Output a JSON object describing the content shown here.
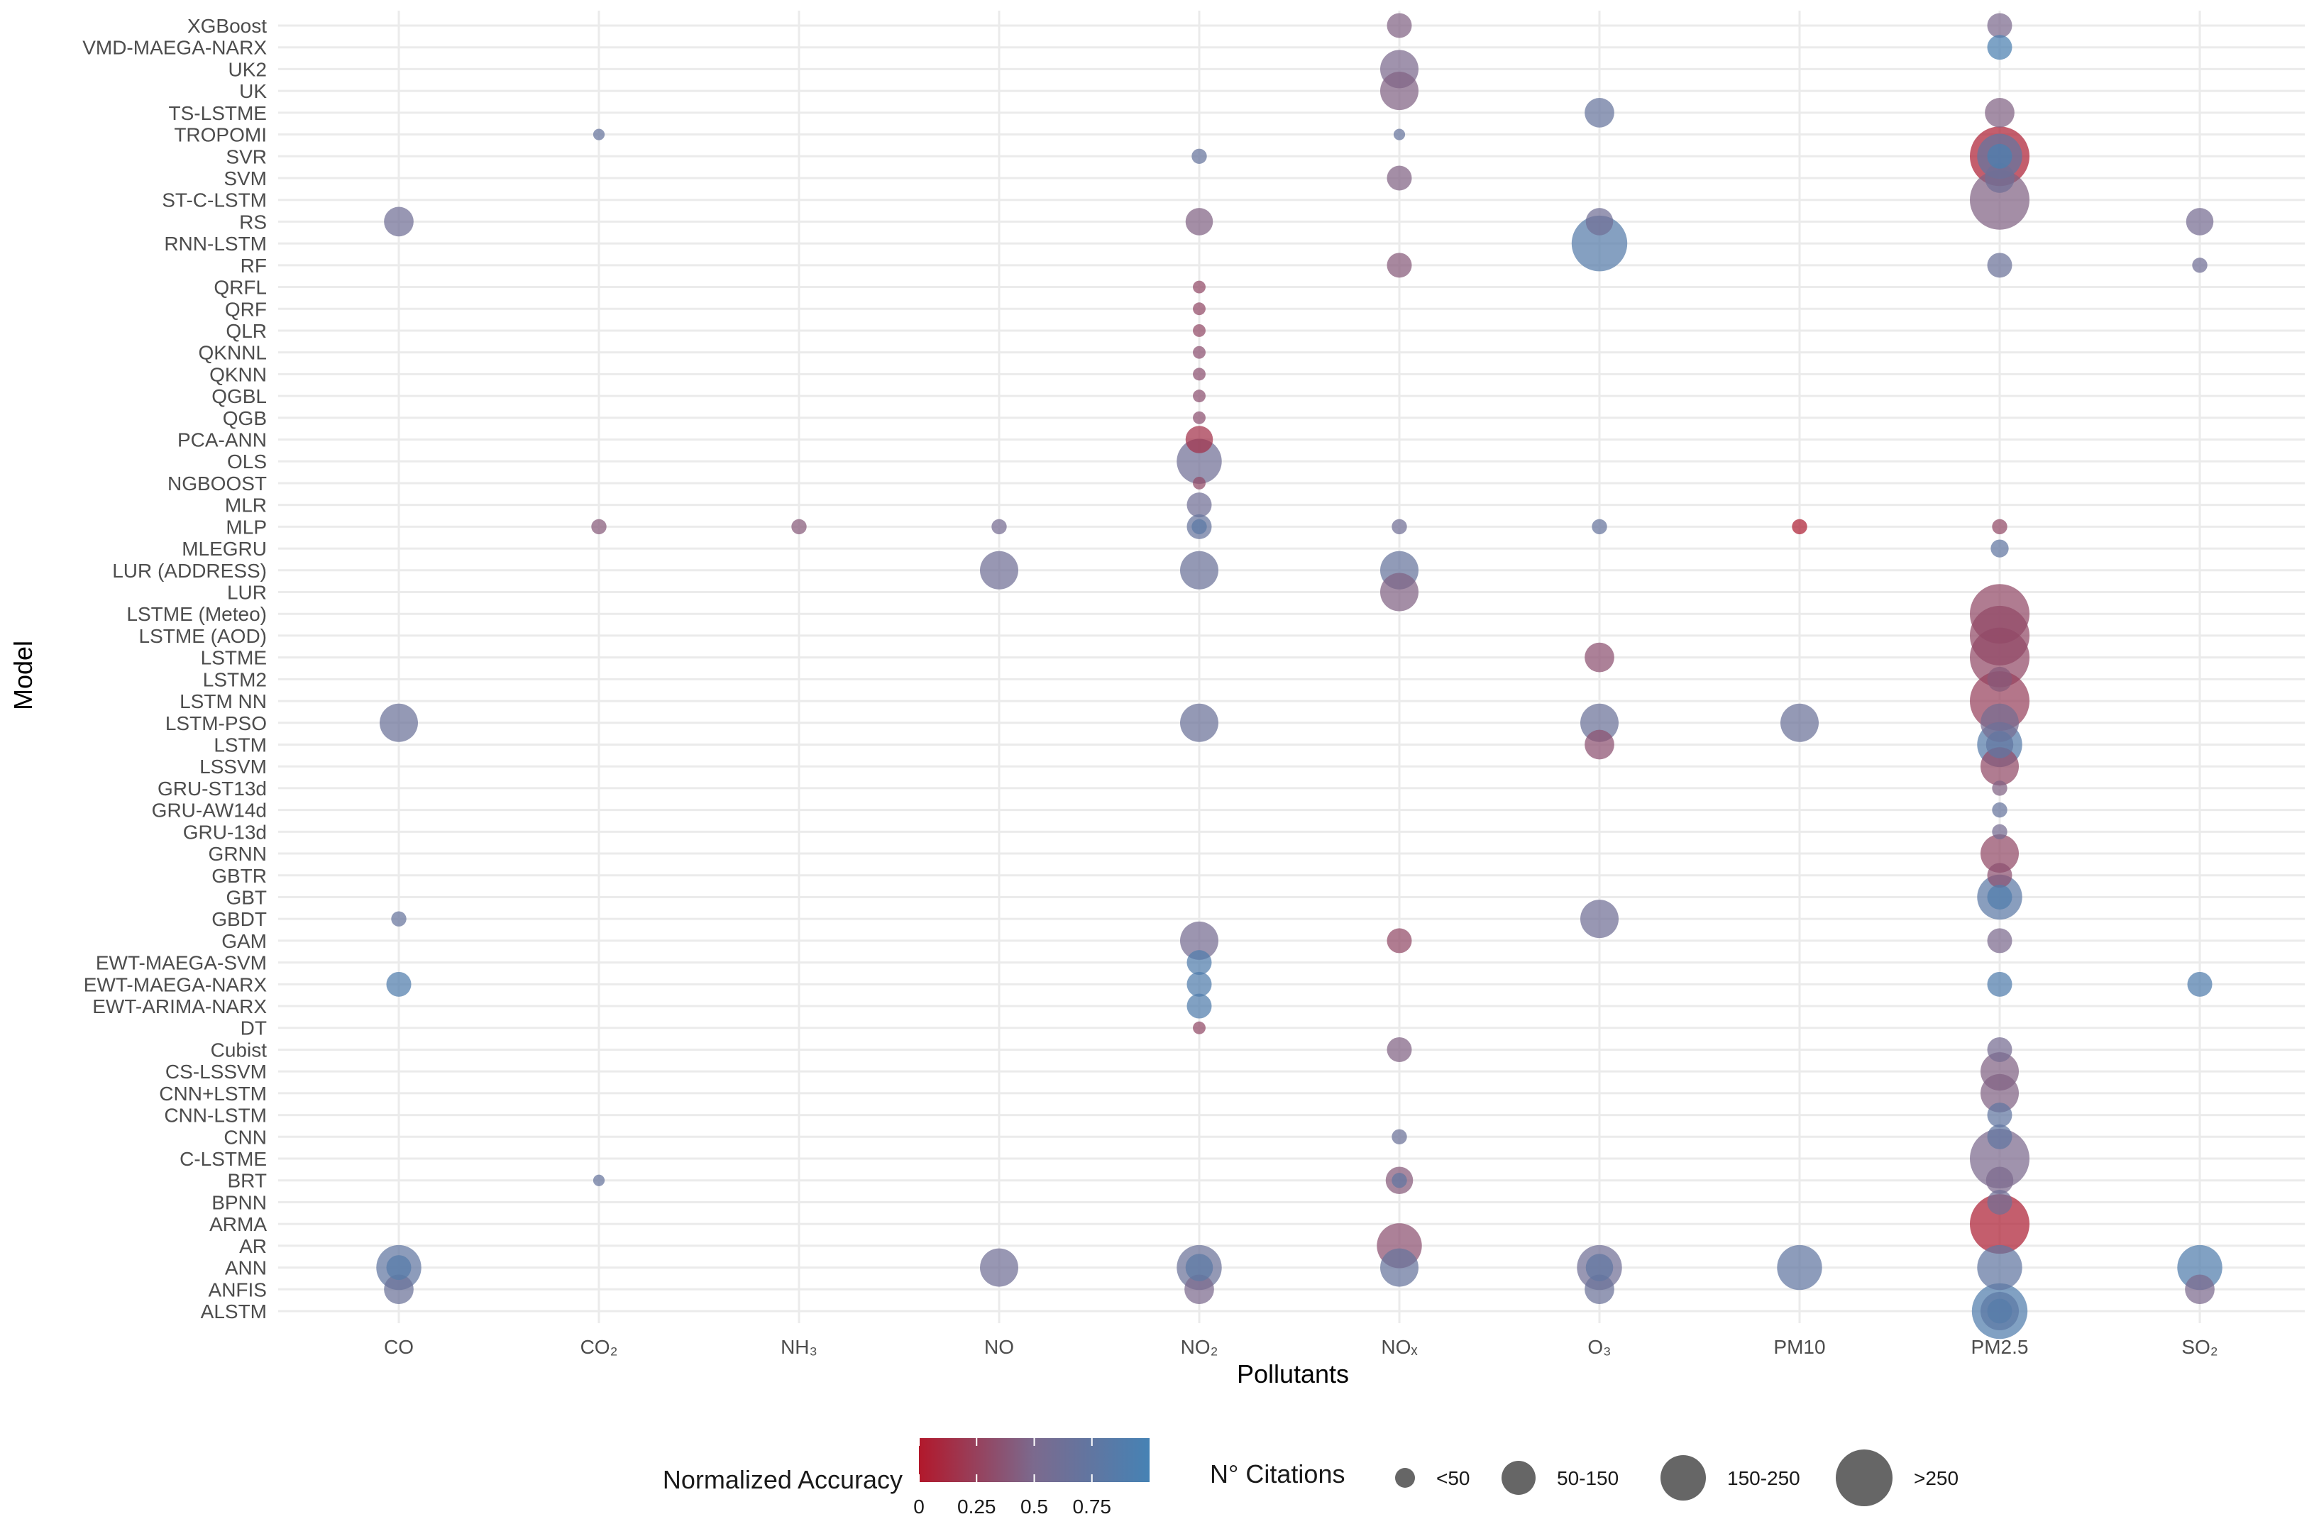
{
  "chart_data": {
    "type": "scatter",
    "subtype": "bubble",
    "xlabel": "Pollutants",
    "ylabel": "Model",
    "x_categories": [
      "CO",
      "CO₂",
      "NH₃",
      "NO",
      "NO₂",
      "NOₓ",
      "O₃",
      "PM10",
      "PM2.5",
      "SO₂"
    ],
    "y_categories": [
      "ALSTM",
      "ANFIS",
      "ANN",
      "AR",
      "ARMA",
      "BPNN",
      "BRT",
      "C-LSTME",
      "CNN",
      "CNN-LSTM",
      "CNN+LSTM",
      "CS-LSSVM",
      "Cubist",
      "DT",
      "EWT-ARIMA-NARX",
      "EWT-MAEGA-NARX",
      "EWT-MAEGA-SVM",
      "GAM",
      "GBDT",
      "GBT",
      "GBTR",
      "GRNN",
      "GRU-13d",
      "GRU-AW14d",
      "GRU-ST13d",
      "LSSVM",
      "LSTM",
      "LSTM-PSO",
      "LSTM NN",
      "LSTM2",
      "LSTME",
      "LSTME (AOD)",
      "LSTME (Meteo)",
      "LUR",
      "LUR (ADDRESS)",
      "MLEGRU",
      "MLP",
      "MLR",
      "NGBOOST",
      "OLS",
      "PCA-ANN",
      "QGB",
      "QGBL",
      "QKNN",
      "QKNNL",
      "QLR",
      "QRF",
      "QRFL",
      "RF",
      "RNN-LSTM",
      "RS",
      "ST-C-LSTM",
      "SVM",
      "SVR",
      "TROPOMI",
      "TS-LSTME",
      "UK",
      "UK2",
      "VMD-MAEGA-NARX",
      "XGBoost"
    ],
    "color_legend": {
      "title": "Normalized Accuracy",
      "ticks": [
        0,
        0.25,
        0.5,
        0.75
      ],
      "low_color": "#b2182b",
      "mid_color": "#7b6a8e",
      "high_color": "#4682b4"
    },
    "size_legend": {
      "title": "N° Citations",
      "labels": [
        "<50",
        "50-150",
        "150-250",
        ">250"
      ],
      "symbol_color": "#666666"
    },
    "points": [
      {
        "model": "XGBoost",
        "pollutant": "NOₓ",
        "citations": 30,
        "accuracy": 0.45
      },
      {
        "model": "XGBoost",
        "pollutant": "PM2.5",
        "citations": 30,
        "accuracy": 0.5
      },
      {
        "model": "VMD-MAEGA-NARX",
        "pollutant": "PM2.5",
        "citations": 30,
        "accuracy": 0.95
      },
      {
        "model": "UK2",
        "pollutant": "NOₓ",
        "citations": 100,
        "accuracy": 0.5
      },
      {
        "model": "UK",
        "pollutant": "NOₓ",
        "citations": 100,
        "accuracy": 0.45
      },
      {
        "model": "TS-LSTME",
        "pollutant": "O₃",
        "citations": 50,
        "accuracy": 0.7
      },
      {
        "model": "TS-LSTME",
        "pollutant": "PM2.5",
        "citations": 50,
        "accuracy": 0.45
      },
      {
        "model": "TROPOMI",
        "pollutant": "CO₂",
        "citations": 1,
        "accuracy": 0.7
      },
      {
        "model": "TROPOMI",
        "pollutant": "NOₓ",
        "citations": 1,
        "accuracy": 0.7
      },
      {
        "model": "SVR",
        "pollutant": "NO₂",
        "citations": 5,
        "accuracy": 0.7
      },
      {
        "model": "SVR",
        "pollutant": "PM2.5",
        "citations": 350,
        "accuracy": 0.05
      },
      {
        "model": "SVR",
        "pollutant": "PM2.5",
        "citations": 150,
        "accuracy": 0.75
      },
      {
        "model": "SVR",
        "pollutant": "PM2.5",
        "citations": 30,
        "accuracy": 0.95
      },
      {
        "model": "SVM",
        "pollutant": "NOₓ",
        "citations": 30,
        "accuracy": 0.45
      },
      {
        "model": "SVM",
        "pollutant": "PM2.5",
        "citations": 50,
        "accuracy": 0.6
      },
      {
        "model": "ST-C-LSTM",
        "pollutant": "PM2.5",
        "citations": 300,
        "accuracy": 0.45
      },
      {
        "model": "RS",
        "pollutant": "CO",
        "citations": 50,
        "accuracy": 0.6
      },
      {
        "model": "RS",
        "pollutant": "NO₂",
        "citations": 40,
        "accuracy": 0.45
      },
      {
        "model": "RS",
        "pollutant": "O₃",
        "citations": 40,
        "accuracy": 0.6
      },
      {
        "model": "RS",
        "pollutant": "SO₂",
        "citations": 40,
        "accuracy": 0.55
      },
      {
        "model": "RNN-LSTM",
        "pollutant": "O₃",
        "citations": 250,
        "accuracy": 0.85
      },
      {
        "model": "RF",
        "pollutant": "NOₓ",
        "citations": 30,
        "accuracy": 0.4
      },
      {
        "model": "RF",
        "pollutant": "PM2.5",
        "citations": 30,
        "accuracy": 0.65
      },
      {
        "model": "RF",
        "pollutant": "SO₂",
        "citations": 5,
        "accuracy": 0.6
      },
      {
        "model": "QRFL",
        "pollutant": "NO₂",
        "citations": 2,
        "accuracy": 0.3
      },
      {
        "model": "QRF",
        "pollutant": "NO₂",
        "citations": 2,
        "accuracy": 0.3
      },
      {
        "model": "QLR",
        "pollutant": "NO₂",
        "citations": 2,
        "accuracy": 0.3
      },
      {
        "model": "QKNNL",
        "pollutant": "NO₂",
        "citations": 2,
        "accuracy": 0.35
      },
      {
        "model": "QKNN",
        "pollutant": "NO₂",
        "citations": 2,
        "accuracy": 0.35
      },
      {
        "model": "QGBL",
        "pollutant": "NO₂",
        "citations": 2,
        "accuracy": 0.35
      },
      {
        "model": "QGB",
        "pollutant": "NO₂",
        "citations": 2,
        "accuracy": 0.35
      },
      {
        "model": "PCA-ANN",
        "pollutant": "NO₂",
        "citations": 40,
        "accuracy": 0.15
      },
      {
        "model": "OLS",
        "pollutant": "NO₂",
        "citations": 150,
        "accuracy": 0.6
      },
      {
        "model": "NGBOOST",
        "pollutant": "NO₂",
        "citations": 2,
        "accuracy": 0.3
      },
      {
        "model": "MLR",
        "pollutant": "NO₂",
        "citations": 30,
        "accuracy": 0.6
      },
      {
        "model": "MLP",
        "pollutant": "CO₂",
        "citations": 5,
        "accuracy": 0.4
      },
      {
        "model": "MLP",
        "pollutant": "NH₃",
        "citations": 5,
        "accuracy": 0.4
      },
      {
        "model": "MLP",
        "pollutant": "NO",
        "citations": 5,
        "accuracy": 0.55
      },
      {
        "model": "MLP",
        "pollutant": "NO₂",
        "citations": 30,
        "accuracy": 0.7
      },
      {
        "model": "MLP",
        "pollutant": "NO₂",
        "citations": 5,
        "accuracy": 0.8
      },
      {
        "model": "MLP",
        "pollutant": "NOₓ",
        "citations": 5,
        "accuracy": 0.6
      },
      {
        "model": "MLP",
        "pollutant": "O₃",
        "citations": 5,
        "accuracy": 0.7
      },
      {
        "model": "MLP",
        "pollutant": "PM10",
        "citations": 5,
        "accuracy": 0.05
      },
      {
        "model": "MLP",
        "pollutant": "PM2.5",
        "citations": 5,
        "accuracy": 0.3
      },
      {
        "model": "MLEGRU",
        "pollutant": "PM2.5",
        "citations": 10,
        "accuracy": 0.75
      },
      {
        "model": "LUR (ADDRESS)",
        "pollutant": "NO",
        "citations": 100,
        "accuracy": 0.6
      },
      {
        "model": "LUR (ADDRESS)",
        "pollutant": "NO₂",
        "citations": 100,
        "accuracy": 0.65
      },
      {
        "model": "LUR (ADDRESS)",
        "pollutant": "NOₓ",
        "citations": 100,
        "accuracy": 0.7
      },
      {
        "model": "LUR",
        "pollutant": "NOₓ",
        "citations": 100,
        "accuracy": 0.45
      },
      {
        "model": "LSTME (Meteo)",
        "pollutant": "PM2.5",
        "citations": 350,
        "accuracy": 0.3
      },
      {
        "model": "LSTME (AOD)",
        "pollutant": "PM2.5",
        "citations": 350,
        "accuracy": 0.3
      },
      {
        "model": "LSTME",
        "pollutant": "O₃",
        "citations": 50,
        "accuracy": 0.35
      },
      {
        "model": "LSTME",
        "pollutant": "PM2.5",
        "citations": 350,
        "accuracy": 0.3
      },
      {
        "model": "LSTM2",
        "pollutant": "PM2.5",
        "citations": 30,
        "accuracy": 0.4
      },
      {
        "model": "LSTM NN",
        "pollutant": "PM2.5",
        "citations": 350,
        "accuracy": 0.25
      },
      {
        "model": "LSTM-PSO",
        "pollutant": "CO",
        "citations": 100,
        "accuracy": 0.65
      },
      {
        "model": "LSTM-PSO",
        "pollutant": "NO₂",
        "citations": 100,
        "accuracy": 0.65
      },
      {
        "model": "LSTM-PSO",
        "pollutant": "O₃",
        "citations": 100,
        "accuracy": 0.65
      },
      {
        "model": "LSTM-PSO",
        "pollutant": "PM10",
        "citations": 100,
        "accuracy": 0.65
      },
      {
        "model": "LSTM-PSO",
        "pollutant": "PM2.5",
        "citations": 100,
        "accuracy": 0.55
      },
      {
        "model": "LSTM",
        "pollutant": "O₃",
        "citations": 50,
        "accuracy": 0.35
      },
      {
        "model": "LSTM",
        "pollutant": "PM2.5",
        "citations": 150,
        "accuracy": 0.85
      },
      {
        "model": "LSTM",
        "pollutant": "PM2.5",
        "citations": 40,
        "accuracy": 0.75
      },
      {
        "model": "LSSVM",
        "pollutant": "PM2.5",
        "citations": 100,
        "accuracy": 0.3
      },
      {
        "model": "GRU-ST13d",
        "pollutant": "PM2.5",
        "citations": 5,
        "accuracy": 0.45
      },
      {
        "model": "GRU-AW14d",
        "pollutant": "PM2.5",
        "citations": 5,
        "accuracy": 0.7
      },
      {
        "model": "GRU-13d",
        "pollutant": "PM2.5",
        "citations": 5,
        "accuracy": 0.55
      },
      {
        "model": "GRNN",
        "pollutant": "PM2.5",
        "citations": 100,
        "accuracy": 0.3
      },
      {
        "model": "GBTR",
        "pollutant": "PM2.5",
        "citations": 30,
        "accuracy": 0.35
      },
      {
        "model": "GBT",
        "pollutant": "PM2.5",
        "citations": 150,
        "accuracy": 0.8
      },
      {
        "model": "GBT",
        "pollutant": "PM2.5",
        "citations": 30,
        "accuracy": 0.9
      },
      {
        "model": "GBDT",
        "pollutant": "CO",
        "citations": 5,
        "accuracy": 0.7
      },
      {
        "model": "GBDT",
        "pollutant": "O₃",
        "citations": 100,
        "accuracy": 0.6
      },
      {
        "model": "GAM",
        "pollutant": "NO₂",
        "citations": 100,
        "accuracy": 0.55
      },
      {
        "model": "GAM",
        "pollutant": "NOₓ",
        "citations": 30,
        "accuracy": 0.3
      },
      {
        "model": "GAM",
        "pollutant": "PM2.5",
        "citations": 30,
        "accuracy": 0.5
      },
      {
        "model": "EWT-MAEGA-SVM",
        "pollutant": "NO₂",
        "citations": 30,
        "accuracy": 0.9
      },
      {
        "model": "EWT-MAEGA-NARX",
        "pollutant": "CO",
        "citations": 30,
        "accuracy": 0.9
      },
      {
        "model": "EWT-MAEGA-NARX",
        "pollutant": "NO₂",
        "citations": 30,
        "accuracy": 0.9
      },
      {
        "model": "EWT-MAEGA-NARX",
        "pollutant": "PM2.5",
        "citations": 30,
        "accuracy": 0.9
      },
      {
        "model": "EWT-MAEGA-NARX",
        "pollutant": "SO₂",
        "citations": 30,
        "accuracy": 0.9
      },
      {
        "model": "EWT-ARIMA-NARX",
        "pollutant": "NO₂",
        "citations": 30,
        "accuracy": 0.9
      },
      {
        "model": "DT",
        "pollutant": "NO₂",
        "citations": 2,
        "accuracy": 0.3
      },
      {
        "model": "Cubist",
        "pollutant": "NOₓ",
        "citations": 30,
        "accuracy": 0.45
      },
      {
        "model": "Cubist",
        "pollutant": "PM2.5",
        "citations": 30,
        "accuracy": 0.55
      },
      {
        "model": "CS-LSSVM",
        "pollutant": "PM2.5",
        "citations": 100,
        "accuracy": 0.45
      },
      {
        "model": "CNN+LSTM",
        "pollutant": "PM2.5",
        "citations": 100,
        "accuracy": 0.45
      },
      {
        "model": "CNN-LSTM",
        "pollutant": "PM2.5",
        "citations": 30,
        "accuracy": 0.75
      },
      {
        "model": "CNN",
        "pollutant": "NOₓ",
        "citations": 5,
        "accuracy": 0.65
      },
      {
        "model": "CNN",
        "pollutant": "PM2.5",
        "citations": 30,
        "accuracy": 0.75
      },
      {
        "model": "C-LSTME",
        "pollutant": "PM2.5",
        "citations": 300,
        "accuracy": 0.5
      },
      {
        "model": "BRT",
        "pollutant": "CO₂",
        "citations": 1,
        "accuracy": 0.7
      },
      {
        "model": "BRT",
        "pollutant": "NOₓ",
        "citations": 40,
        "accuracy": 0.4
      },
      {
        "model": "BRT",
        "pollutant": "NOₓ",
        "citations": 5,
        "accuracy": 0.75
      },
      {
        "model": "BRT",
        "pollutant": "PM2.5",
        "citations": 40,
        "accuracy": 0.5
      },
      {
        "model": "BPNN",
        "pollutant": "PM2.5",
        "citations": 30,
        "accuracy": 0.6
      },
      {
        "model": "ARMA",
        "pollutant": "PM2.5",
        "citations": 300,
        "accuracy": 0.05
      },
      {
        "model": "AR",
        "pollutant": "NOₓ",
        "citations": 150,
        "accuracy": 0.35
      },
      {
        "model": "ANN",
        "pollutant": "CO",
        "citations": 150,
        "accuracy": 0.75
      },
      {
        "model": "ANN",
        "pollutant": "CO",
        "citations": 30,
        "accuracy": 0.85
      },
      {
        "model": "ANN",
        "pollutant": "NO",
        "citations": 100,
        "accuracy": 0.6
      },
      {
        "model": "ANN",
        "pollutant": "NO₂",
        "citations": 150,
        "accuracy": 0.65
      },
      {
        "model": "ANN",
        "pollutant": "NO₂",
        "citations": 40,
        "accuracy": 0.8
      },
      {
        "model": "ANN",
        "pollutant": "NOₓ",
        "citations": 100,
        "accuracy": 0.7
      },
      {
        "model": "ANN",
        "pollutant": "O₃",
        "citations": 150,
        "accuracy": 0.6
      },
      {
        "model": "ANN",
        "pollutant": "O₃",
        "citations": 40,
        "accuracy": 0.75
      },
      {
        "model": "ANN",
        "pollutant": "PM10",
        "citations": 150,
        "accuracy": 0.75
      },
      {
        "model": "ANN",
        "pollutant": "PM2.5",
        "citations": 150,
        "accuracy": 0.75
      },
      {
        "model": "ANN",
        "pollutant": "SO₂",
        "citations": 150,
        "accuracy": 0.9
      },
      {
        "model": "ANFIS",
        "pollutant": "CO",
        "citations": 50,
        "accuracy": 0.65
      },
      {
        "model": "ANFIS",
        "pollutant": "NO₂",
        "citations": 50,
        "accuracy": 0.5
      },
      {
        "model": "ANFIS",
        "pollutant": "O₃",
        "citations": 50,
        "accuracy": 0.65
      },
      {
        "model": "ANFIS",
        "pollutant": "SO₂",
        "citations": 50,
        "accuracy": 0.5
      },
      {
        "model": "ALSTM",
        "pollutant": "PM2.5",
        "citations": 250,
        "accuracy": 0.9
      },
      {
        "model": "ALSTM",
        "pollutant": "PM2.5",
        "citations": 100,
        "accuracy": 0.8
      },
      {
        "model": "ALSTM",
        "pollutant": "PM2.5",
        "citations": 30,
        "accuracy": 0.85
      }
    ]
  }
}
